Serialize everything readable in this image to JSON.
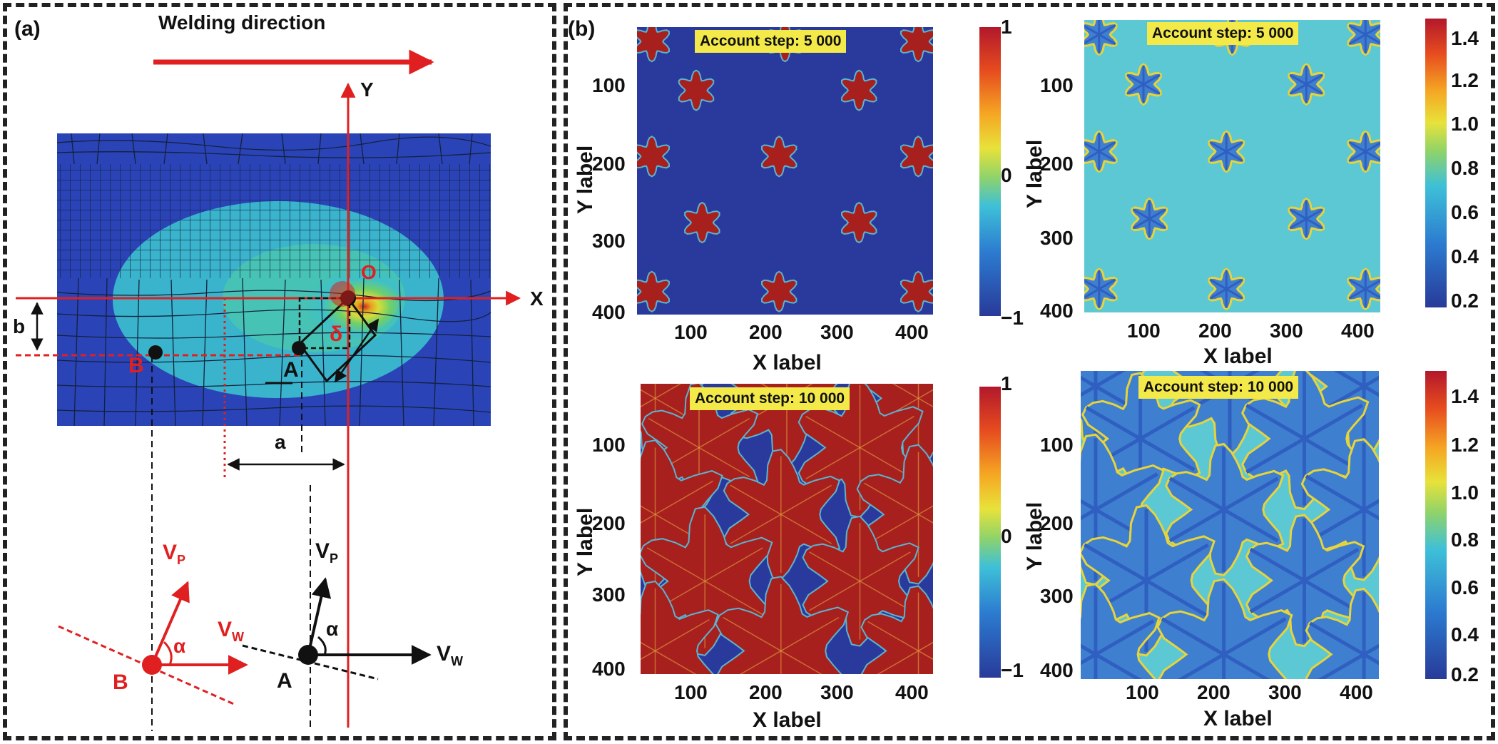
{
  "panel_a": {
    "label": "(a)",
    "welding_direction": "Welding direction",
    "axis_y": "Y",
    "axis_x": "X",
    "origin": "O",
    "pt_b": "B",
    "pt_a": "A",
    "dist_b": "b",
    "dist_a": "a",
    "delta": "δ",
    "vp_label": "V",
    "vp_sub": "P",
    "vw_label": "V",
    "vw_sub": "W",
    "alpha": "α"
  },
  "panel_b": {
    "label": "(b)",
    "x_label": "X label",
    "y_label": "Y label",
    "step_5000": "Account step: 5 000",
    "step_10000": "Account step: 10 000",
    "x_ticks": [
      "100",
      "200",
      "300",
      "400"
    ],
    "y_ticks": [
      "100",
      "200",
      "300",
      "400"
    ],
    "phase_ticks": [
      "1",
      "0",
      "−1"
    ],
    "conc_ticks": [
      "1.4",
      "1.2",
      "1.0",
      "0.8",
      "0.6",
      "0.4",
      "0.2"
    ],
    "colors": {
      "bg_phase": "#2a3a9c",
      "bg_conc": "#5cc8d4",
      "crystal": "#a8201e",
      "dendrite": "#2f5fc0",
      "edge": "#e6d43a"
    }
  }
}
